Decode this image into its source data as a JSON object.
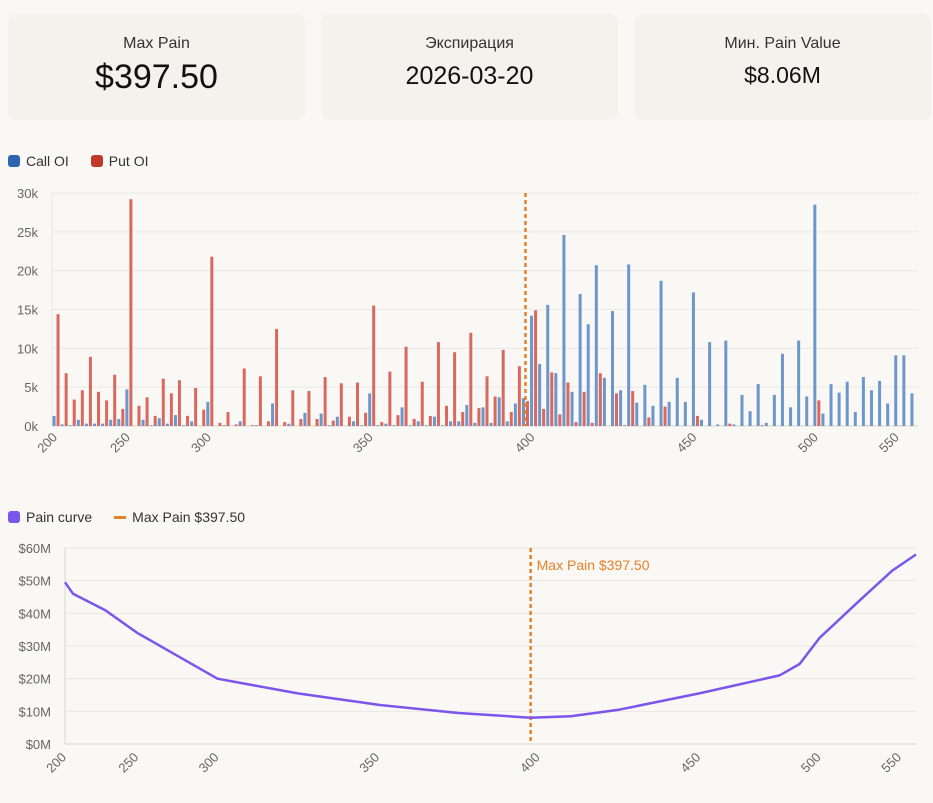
{
  "cards": [
    {
      "label": "Max Pain",
      "value": "$397.50"
    },
    {
      "label": "Экспирация",
      "value": "2026-03-20"
    },
    {
      "label": "Мин. Pain Value",
      "value": "$8.06M"
    }
  ],
  "colors": {
    "call": "#2f64b0",
    "call_bar": "#6d96cb",
    "put": "#c0392b",
    "put_bar": "#d9695f",
    "pain": "#7c55ea",
    "maxpain": "#e8802a",
    "grid": "#ebe9e4",
    "axis": "#d8d6d0"
  },
  "chart_data": [
    {
      "type": "bar",
      "title": "",
      "legend": [
        "Call OI",
        "Put OI"
      ],
      "legend_position": "top-left",
      "xlabel": "",
      "ylabel": "",
      "ylim": [
        0,
        30000
      ],
      "yticks": [
        "0k",
        "5k",
        "10k",
        "15k",
        "20k",
        "25k",
        "30k"
      ],
      "xticks": [
        200,
        250,
        300,
        350,
        400,
        450,
        500,
        550
      ],
      "max_pain_strike": 397.5,
      "categories": [
        200,
        205,
        210,
        215,
        220,
        225,
        230,
        235,
        240,
        250,
        255,
        260,
        265,
        270,
        275,
        280,
        285,
        290,
        295,
        300,
        302.5,
        305,
        307.5,
        310,
        312.5,
        315,
        317.5,
        320,
        322.5,
        325,
        327.5,
        330,
        332.5,
        335,
        337.5,
        340,
        342.5,
        345,
        347.5,
        350,
        352.5,
        355,
        357.5,
        360,
        362.5,
        365,
        367.5,
        370,
        372.5,
        375,
        377.5,
        380,
        382.5,
        385,
        387.5,
        390,
        392.5,
        395,
        397.5,
        400,
        402.5,
        405,
        407.5,
        410,
        412.5,
        415,
        417.5,
        420,
        422.5,
        425,
        427.5,
        430,
        432.5,
        435,
        437.5,
        440,
        442.5,
        445,
        447.5,
        450,
        452.5,
        455,
        457.5,
        460,
        462.5,
        465,
        467.5,
        470,
        472.5,
        475,
        480,
        485,
        490,
        495,
        500,
        505,
        510,
        515,
        520,
        525,
        530,
        535,
        540,
        545,
        550,
        555,
        560
      ],
      "series": [
        {
          "name": "Call OI",
          "values_k": [
            1.3,
            0.2,
            0.1,
            0.8,
            0.3,
            0.3,
            0.3,
            0.8,
            0.9,
            4.7,
            0,
            0.8,
            0.1,
            1.0,
            0.3,
            1.4,
            0.1,
            0.6,
            0,
            3.1,
            0,
            0.1,
            0,
            0.6,
            0,
            0.1,
            0,
            2.9,
            0,
            0.3,
            0,
            1.7,
            0,
            1.6,
            0.1,
            1.2,
            0,
            0.6,
            0.1,
            4.2,
            0.1,
            0.3,
            0.1,
            2.4,
            0.1,
            0.6,
            0.1,
            1.2,
            0.1,
            0.6,
            0.6,
            2.7,
            0.4,
            2.4,
            0.4,
            3.7,
            0.6,
            2.9,
            3.6,
            14.2,
            8.0,
            15.6,
            6.8,
            24.6,
            4.4,
            17.0,
            13.1,
            20.7,
            6.2,
            14.8,
            4.6,
            20.8,
            3.0,
            5.3,
            2.6,
            18.7,
            3.1,
            6.2,
            3.1,
            17.2,
            0.8,
            10.8,
            0.2,
            11.0,
            0.2,
            4.0,
            1.9,
            5.4,
            0.4,
            4.0,
            9.3,
            2.4,
            11.0,
            3.8,
            28.5,
            1.6,
            5.4,
            4.3,
            5.7,
            1.8,
            6.3,
            4.6,
            5.8,
            2.9,
            9.1,
            9.1,
            4.2
          ]
        },
        {
          "name": "Put OI",
          "values_k": [
            14.4,
            6.8,
            3.4,
            4.6,
            8.9,
            4.4,
            3.3,
            6.6,
            2.2,
            29.2,
            2.6,
            3.7,
            1.3,
            6.1,
            4.2,
            5.9,
            1.3,
            4.9,
            2.1,
            21.8,
            0.4,
            1.8,
            0.2,
            7.4,
            0.1,
            6.4,
            0.6,
            12.5,
            0.5,
            4.6,
            0.9,
            4.5,
            0.9,
            6.3,
            0.7,
            5.5,
            1.2,
            5.6,
            1.7,
            15.5,
            0.5,
            7.0,
            1.4,
            10.2,
            0.9,
            5.7,
            1.3,
            10.8,
            2.6,
            9.5,
            1.8,
            12.0,
            2.3,
            6.4,
            3.8,
            9.8,
            1.8,
            7.7,
            3.2,
            14.9,
            2.2,
            6.9,
            1.5,
            5.6,
            0.5,
            4.4,
            0.4,
            6.8,
            0,
            4.2,
            0.1,
            4.5,
            0,
            1.1,
            0,
            2.5,
            0,
            0,
            0,
            1.3,
            0,
            0,
            0,
            0.3,
            0,
            0,
            0,
            0.1,
            0,
            0,
            0,
            0,
            0,
            0,
            3.3,
            0,
            0,
            0,
            0,
            0,
            0.05,
            0,
            0,
            0,
            0.05,
            0,
            0
          ]
        }
      ]
    },
    {
      "type": "line",
      "title": "",
      "legend": [
        "Pain curve",
        "Max Pain $397.50"
      ],
      "legend_position": "top-left",
      "annotation": "Max Pain $397.50",
      "ylim": [
        0,
        60
      ],
      "yticks": [
        "$0M",
        "$10M",
        "$20M",
        "$30M",
        "$40M",
        "$50M",
        "$60M"
      ],
      "xticks": [
        200,
        250,
        300,
        350,
        400,
        450,
        500,
        550
      ],
      "series": [
        {
          "name": "Pain curve",
          "points_musd": [
            [
              200,
              49.5
            ],
            [
              205,
              46
            ],
            [
              225,
              41
            ],
            [
              250,
              34
            ],
            [
              275,
              27
            ],
            [
              300,
              20
            ],
            [
              325,
              15.5
            ],
            [
              350,
              12
            ],
            [
              375,
              9.5
            ],
            [
              397.5,
              8.06
            ],
            [
              410,
              8.5
            ],
            [
              425,
              10.5
            ],
            [
              450,
              15.5
            ],
            [
              475,
              21
            ],
            [
              487.5,
              24.5
            ],
            [
              500,
              32.5
            ],
            [
              525,
              44
            ],
            [
              545,
              53
            ],
            [
              560,
              58
            ]
          ]
        }
      ]
    }
  ]
}
